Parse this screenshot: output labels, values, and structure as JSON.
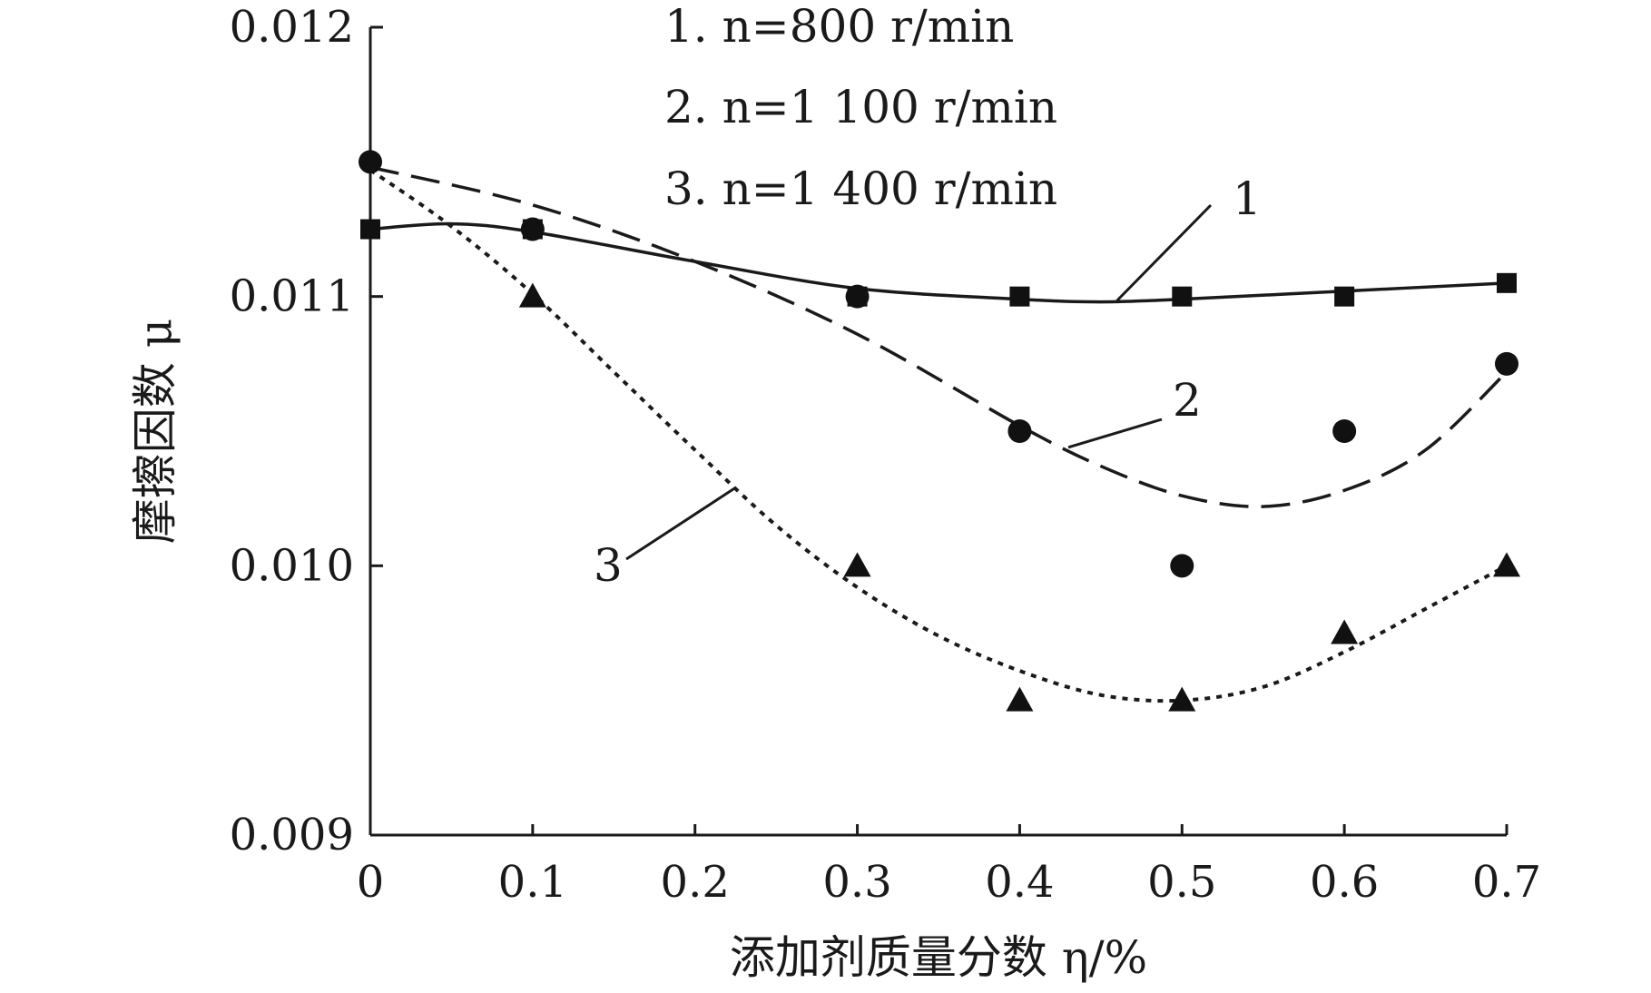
{
  "chart_data": {
    "type": "scatter",
    "title": "",
    "xlabel": "添加剂质量分数 η/%",
    "ylabel": "摩擦因数 μ",
    "xlim": [
      0,
      0.7
    ],
    "ylim": [
      0.009,
      0.012
    ],
    "x_ticks": [
      "0",
      "0.1",
      "0.2",
      "0.3",
      "0.4",
      "0.5",
      "0.6",
      "0.7"
    ],
    "y_ticks": [
      "0.009",
      "0.010",
      "0.011",
      "0.012"
    ],
    "grid": false,
    "legend_entries": [
      "1. n=800 r/min",
      "2. n=1 100 r/min",
      "3. n=1 400 r/min"
    ],
    "series": [
      {
        "name": "1. n=800 r/min",
        "callout": "1",
        "marker": "square",
        "line_style": "solid",
        "points": [
          {
            "x": 0,
            "y": 0.01125
          },
          {
            "x": 0.1,
            "y": 0.01125
          },
          {
            "x": 0.3,
            "y": 0.011
          },
          {
            "x": 0.4,
            "y": 0.011
          },
          {
            "x": 0.5,
            "y": 0.011
          },
          {
            "x": 0.6,
            "y": 0.011
          },
          {
            "x": 0.7,
            "y": 0.01105
          }
        ],
        "fit": [
          {
            "x": 0,
            "y": 0.01125
          },
          {
            "x": 0.05,
            "y": 0.01127
          },
          {
            "x": 0.1,
            "y": 0.01124
          },
          {
            "x": 0.2,
            "y": 0.01113
          },
          {
            "x": 0.3,
            "y": 0.01103
          },
          {
            "x": 0.4,
            "y": 0.01099
          },
          {
            "x": 0.45,
            "y": 0.01098
          },
          {
            "x": 0.5,
            "y": 0.01099
          },
          {
            "x": 0.6,
            "y": 0.01102
          },
          {
            "x": 0.7,
            "y": 0.01105
          }
        ]
      },
      {
        "name": "2. n=1 100 r/min",
        "callout": "2",
        "marker": "circle",
        "line_style": "dashed",
        "points": [
          {
            "x": 0,
            "y": 0.0115
          },
          {
            "x": 0.1,
            "y": 0.01125
          },
          {
            "x": 0.3,
            "y": 0.011
          },
          {
            "x": 0.4,
            "y": 0.0105
          },
          {
            "x": 0.5,
            "y": 0.01
          },
          {
            "x": 0.6,
            "y": 0.0105
          },
          {
            "x": 0.7,
            "y": 0.01075
          }
        ],
        "fit": [
          {
            "x": 0,
            "y": 0.01148
          },
          {
            "x": 0.1,
            "y": 0.01134
          },
          {
            "x": 0.2,
            "y": 0.01113
          },
          {
            "x": 0.3,
            "y": 0.01086
          },
          {
            "x": 0.4,
            "y": 0.01052
          },
          {
            "x": 0.45,
            "y": 0.01037
          },
          {
            "x": 0.5,
            "y": 0.01026
          },
          {
            "x": 0.55,
            "y": 0.01022
          },
          {
            "x": 0.6,
            "y": 0.01028
          },
          {
            "x": 0.65,
            "y": 0.01043
          },
          {
            "x": 0.7,
            "y": 0.01072
          }
        ]
      },
      {
        "name": "3. n=1 400 r/min",
        "callout": "3",
        "marker": "triangle",
        "line_style": "dotted",
        "points": [
          {
            "x": 0.1,
            "y": 0.011
          },
          {
            "x": 0.3,
            "y": 0.01
          },
          {
            "x": 0.4,
            "y": 0.0095
          },
          {
            "x": 0.5,
            "y": 0.0095
          },
          {
            "x": 0.6,
            "y": 0.00975
          },
          {
            "x": 0.7,
            "y": 0.01
          }
        ],
        "fit": [
          {
            "x": 0,
            "y": 0.01147
          },
          {
            "x": 0.05,
            "y": 0.01126
          },
          {
            "x": 0.1,
            "y": 0.01101
          },
          {
            "x": 0.15,
            "y": 0.01072
          },
          {
            "x": 0.2,
            "y": 0.01043
          },
          {
            "x": 0.25,
            "y": 0.01015
          },
          {
            "x": 0.3,
            "y": 0.00992
          },
          {
            "x": 0.35,
            "y": 0.00974
          },
          {
            "x": 0.4,
            "y": 0.00961
          },
          {
            "x": 0.45,
            "y": 0.00952
          },
          {
            "x": 0.5,
            "y": 0.0095
          },
          {
            "x": 0.55,
            "y": 0.00955
          },
          {
            "x": 0.6,
            "y": 0.00968
          },
          {
            "x": 0.65,
            "y": 0.00984
          },
          {
            "x": 0.7,
            "y": 0.01
          }
        ]
      }
    ]
  }
}
